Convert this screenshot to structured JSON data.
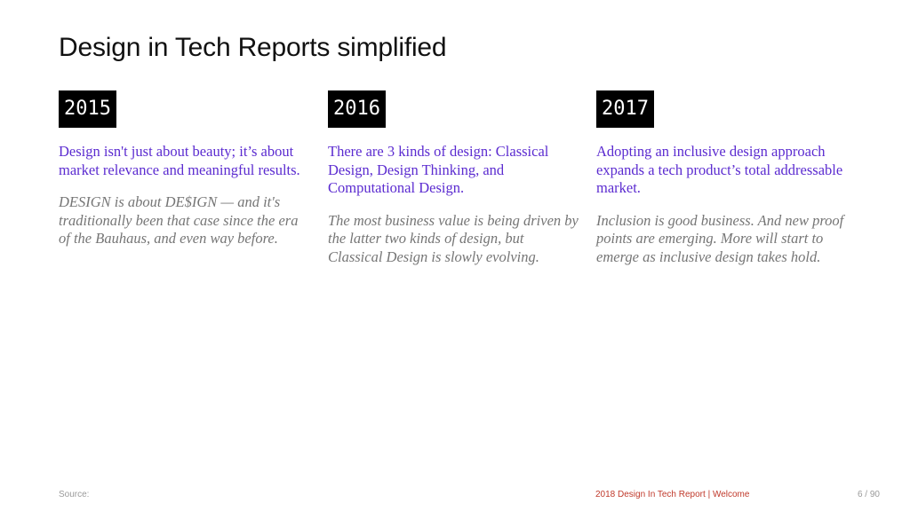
{
  "title": "Design in Tech Reports simplified",
  "columns": [
    {
      "year": "2015",
      "summary": "Design isn't just about beauty; it’s about market relevance and meaningful results.",
      "detail": "DESIGN is about DE$IGN — and it's traditionally been that case since the era of the Bauhaus, and even way before."
    },
    {
      "year": "2016",
      "summary": "There are 3 kinds of design: Classical Design, Design Thinking, and Computational Design.",
      "detail": "The most business value is being driven by the latter two kinds of design, but Classical Design is slowly evolving."
    },
    {
      "year": "2017",
      "summary": "Adopting an inclusive design approach expands a tech product’s total addressable market.",
      "detail": "Inclusion is good business. And new proof points are emerging. More will start to emerge as inclusive design takes hold."
    }
  ],
  "footer": {
    "source": "Source:",
    "report": "2018 Design In Tech Report | Welcome",
    "page": "6 / 90"
  },
  "colors": {
    "summary_text": "#5b2bd0",
    "detail_text": "#757575",
    "badge_bg": "#000000",
    "footer_report": "#c0392b"
  }
}
